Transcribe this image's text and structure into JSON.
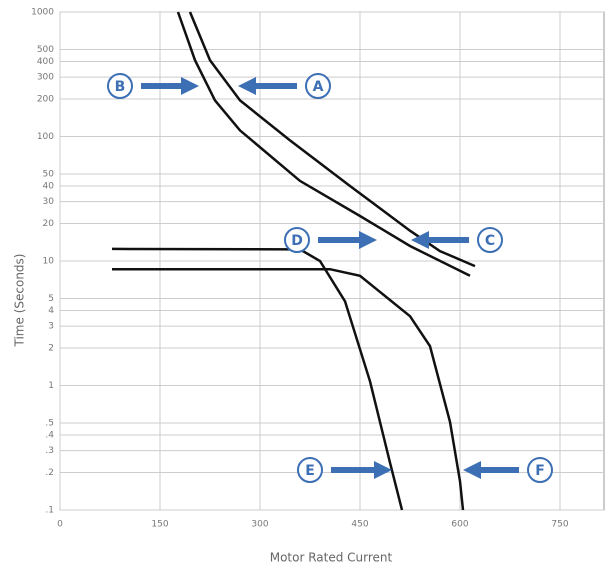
{
  "chart_data": {
    "type": "line",
    "x_label": "Motor Rated Current",
    "y_label": "Time (Seconds)",
    "xlim": [
      0,
      816
    ],
    "xticks": [
      0,
      150,
      300,
      450,
      600,
      750
    ],
    "ylim": [
      0.1,
      1000
    ],
    "log_y": true,
    "grid": true,
    "yticks": [
      1000,
      500,
      400,
      300,
      200,
      100,
      50,
      40,
      30,
      20,
      10,
      5,
      4,
      3,
      2,
      1,
      {
        "value": 0.5,
        "label": ".5"
      },
      {
        "value": 0.4,
        "label": ".4"
      },
      {
        "value": 0.3,
        "label": ".3"
      },
      {
        "value": 0.2,
        "label": ".2"
      },
      {
        "value": 0.1,
        "label": ".1"
      }
    ],
    "series": [
      {
        "color": "#111111",
        "x": [
          177,
          202.5,
          232.5,
          270,
          360,
          450,
          525,
          615
        ],
        "values": [
          1000,
          410,
          195,
          112,
          44,
          23,
          13.2,
          7.6
        ]
      },
      {
        "color": "#111111",
        "x": [
          195,
          225,
          270,
          345,
          435,
          525,
          570,
          622.5
        ],
        "values": [
          1000,
          410,
          195,
          93,
          40,
          17.5,
          12,
          9.1
        ]
      },
      {
        "color": "#111111",
        "x": [
          78,
          360,
          390,
          427.5,
          465,
          495,
          513
        ],
        "values": [
          12.5,
          12.4,
          10,
          4.75,
          1.08,
          0.24,
          0.1
        ]
      },
      {
        "color": "#111111",
        "x": [
          78,
          405,
          450,
          525,
          555,
          585,
          600,
          604.5
        ],
        "values": [
          8.6,
          8.6,
          7.6,
          3.6,
          2.07,
          0.51,
          0.17,
          0.1
        ]
      }
    ],
    "annotations": [
      "A",
      "B",
      "C",
      "D",
      "E",
      "F"
    ]
  }
}
